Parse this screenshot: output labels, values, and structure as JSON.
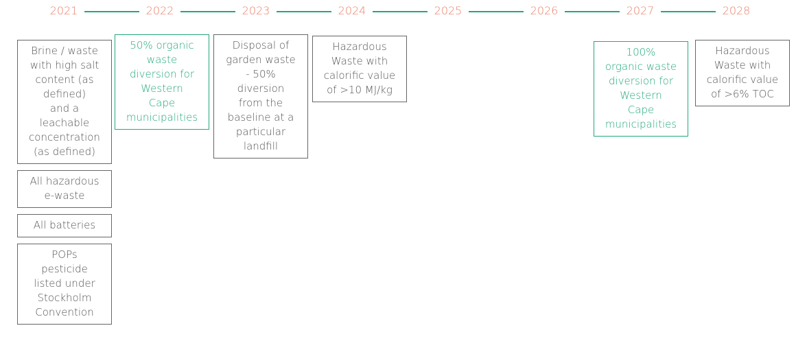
{
  "timeline": [
    {
      "year": "2021",
      "boxes": [
        {
          "color": "#555555",
          "lines": [
            "Brine / waste",
            "with high salt",
            "content (as",
            "defined)",
            "and a",
            "leachable",
            "concentration",
            "(as defined)"
          ]
        },
        {
          "color": "#555555",
          "lines": [
            "All hazardous",
            "e-waste"
          ]
        },
        {
          "color": "#555555",
          "lines": [
            "All batteries"
          ]
        },
        {
          "color": "#555555",
          "lines": [
            "POPs",
            "pesticide",
            "listed under",
            "Stockholm",
            "Convention"
          ]
        }
      ]
    },
    {
      "year": "2022",
      "boxes": [
        {
          "color": "#22a87b",
          "lines": [
            "50% organic",
            "waste",
            "diversion for",
            "Western",
            "Cape",
            "municipalities"
          ]
        }
      ]
    },
    {
      "year": "2023",
      "boxes": [
        {
          "color": "#555555",
          "lines": [
            "Disposal of",
            "garden waste",
            "- 50%",
            "diversion",
            "from the",
            "baseline at a",
            "particular",
            "landfill"
          ]
        }
      ]
    },
    {
      "year": "2024",
      "boxes": [
        {
          "color": "#555555",
          "lines": [
            "Hazardous",
            "Waste with",
            "calorific value",
            "of >10 MJ/kg"
          ]
        }
      ]
    },
    {
      "year": "2025",
      "boxes": []
    },
    {
      "year": "2026",
      "boxes": []
    },
    {
      "year": "2027",
      "boxes": [
        {
          "color": "#22a87b",
          "lines": [
            "100%",
            "organic waste",
            "diversion for",
            "Western",
            "Cape",
            "municipalities"
          ]
        }
      ]
    },
    {
      "year": "2028",
      "boxes": [
        {
          "color": "#555555",
          "lines": [
            "Hazardous",
            "Waste with",
            "calorific value",
            "of >6% TOC"
          ]
        }
      ]
    }
  ]
}
